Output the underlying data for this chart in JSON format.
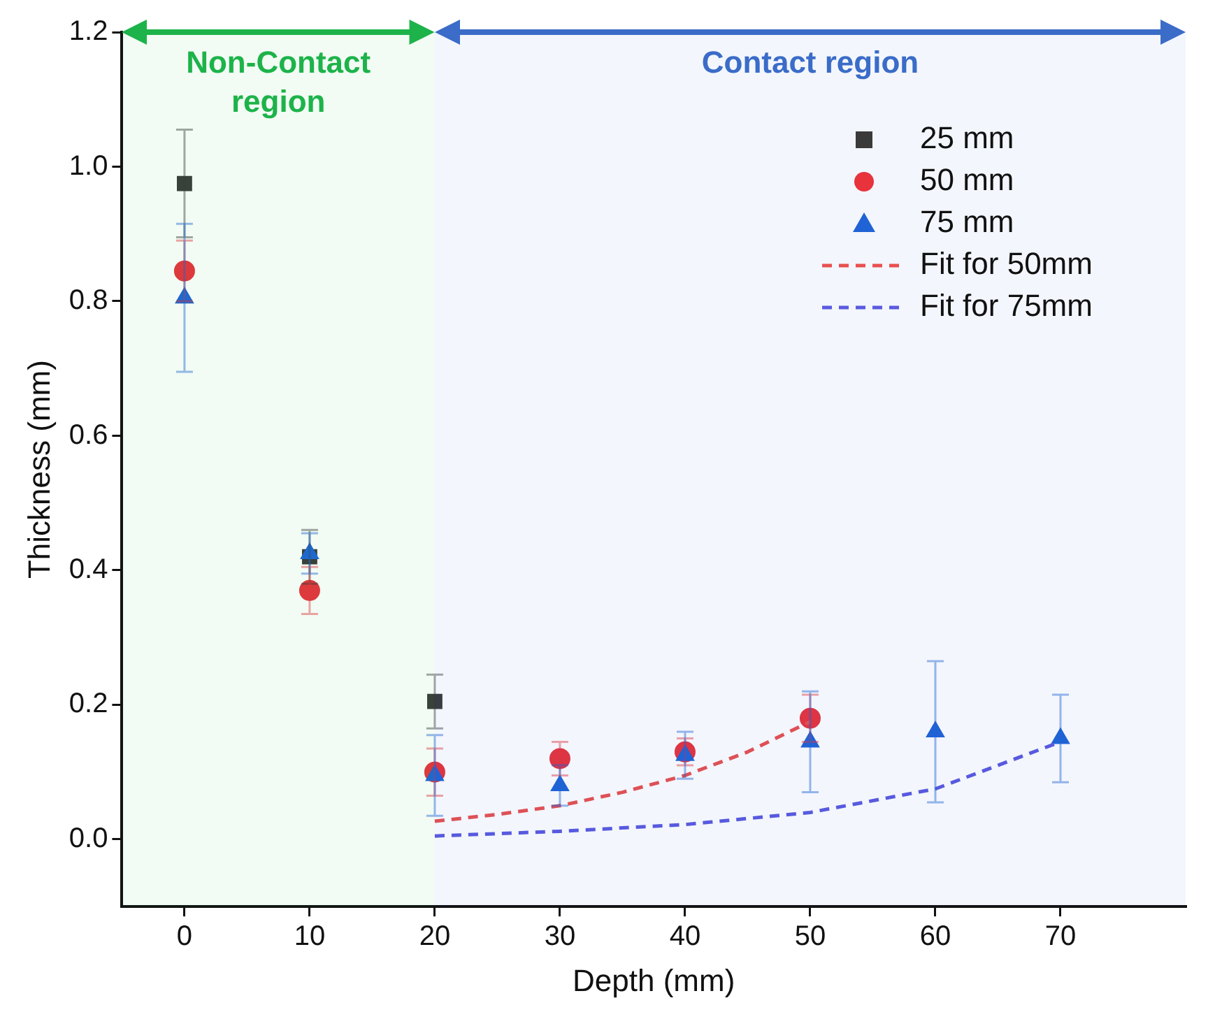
{
  "chart_data": {
    "type": "scatter",
    "xlabel": "Depth (mm)",
    "ylabel": "Thickness (mm)",
    "xlim": [
      -5,
      80
    ],
    "xticks": [
      0,
      10,
      20,
      30,
      40,
      50,
      60,
      70
    ],
    "ylim": [
      -0.1,
      1.2
    ],
    "yticks": [
      {
        "value": 0,
        "label": "0.0"
      },
      {
        "value": 0.2,
        "label": "0.2"
      },
      {
        "value": 0.4,
        "label": "0.4"
      },
      {
        "value": 0.6,
        "label": "0.6"
      },
      {
        "value": 0.8,
        "label": "0.8"
      },
      {
        "value": 1,
        "label": "1.0"
      },
      {
        "value": 1.2,
        "label": "1.2"
      }
    ],
    "grid": false,
    "legend": "top right",
    "bands": [
      {
        "axis": "x",
        "from": -5,
        "to": 20,
        "label": "Non-Contact region",
        "color": "#1db34a"
      },
      {
        "axis": "x",
        "from": 20,
        "to": 80,
        "label": "Contact region",
        "color": "#3a6cc8"
      }
    ],
    "series": [
      {
        "name": "25 mm",
        "color": "#3a3a3a",
        "marker": "square",
        "x": [
          0,
          10,
          20
        ],
        "values": [
          0.975,
          0.42,
          0.205
        ],
        "errors": [
          0.08,
          0.04,
          0.04
        ]
      },
      {
        "name": "50 mm",
        "color": "#e8323c",
        "marker": "circle",
        "x": [
          0,
          10,
          20,
          30,
          40,
          50
        ],
        "values": [
          0.845,
          0.37,
          0.1,
          0.12,
          0.13,
          0.18
        ],
        "errors": [
          0.045,
          0.035,
          0.035,
          0.025,
          0.02,
          0.035
        ]
      },
      {
        "name": "75 mm",
        "color": "#1f63d6",
        "marker": "triangle",
        "x": [
          0,
          10,
          20,
          30,
          40,
          50,
          60,
          70
        ],
        "values": [
          0.805,
          0.425,
          0.095,
          0.08,
          0.125,
          0.145,
          0.16,
          0.15
        ],
        "errors": [
          0.11,
          0.03,
          0.06,
          0.03,
          0.035,
          0.075,
          0.105,
          0.065
        ]
      },
      {
        "name": "Fit for 50mm",
        "type": "line",
        "color": "#e8504f",
        "marker": "none",
        "line_style": "dashed",
        "x": [
          20,
          25,
          30,
          35,
          40,
          45,
          50
        ],
        "values": [
          0.027,
          0.037,
          0.05,
          0.07,
          0.095,
          0.13,
          0.175
        ]
      },
      {
        "name": "Fit for 75mm",
        "type": "line",
        "color": "#5a5ae0",
        "marker": "none",
        "line_style": "dashed",
        "x": [
          20,
          30,
          40,
          50,
          60,
          70
        ],
        "values": [
          0.005,
          0.012,
          0.022,
          0.04,
          0.075,
          0.145
        ]
      }
    ]
  }
}
